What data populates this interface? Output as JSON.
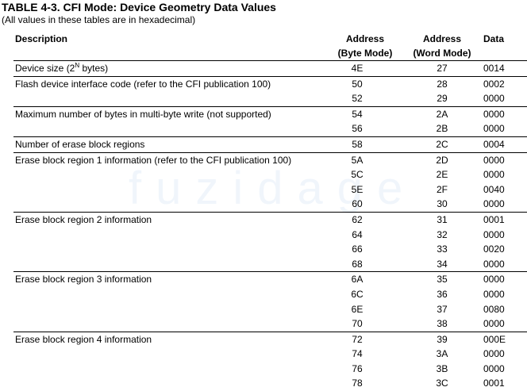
{
  "title": "TABLE 4-3. CFI Mode: Device Geometry Data Values",
  "subtitle": "(All values in these tables are in hexadecimal)",
  "watermark": "fuzidage",
  "header": {
    "description": "Description",
    "address": "Address",
    "byte_mode": "(Byte Mode)",
    "word_mode": "(Word Mode)",
    "data": "Data"
  },
  "rows": [
    {
      "desc_pre": "Device size (2",
      "desc_sup": "N",
      "desc_post": " bytes)",
      "byte": "4E",
      "word": "27",
      "data": "0014"
    },
    {
      "desc": "Flash device interface code (refer to the CFI publication 100)",
      "byte": "50",
      "word": "28",
      "data": "0002"
    },
    {
      "desc": "",
      "byte": "52",
      "word": "29",
      "data": "0000"
    },
    {
      "desc": "Maximum number of bytes in multi-byte write (not supported)",
      "byte": "54",
      "word": "2A",
      "data": "0000"
    },
    {
      "desc": "",
      "byte": "56",
      "word": "2B",
      "data": "0000"
    },
    {
      "desc": "Number of erase block regions",
      "byte": "58",
      "word": "2C",
      "data": "0004"
    },
    {
      "desc": "Erase block region 1 information (refer to the CFI publication 100)",
      "byte": "5A",
      "word": "2D",
      "data": "0000"
    },
    {
      "desc": "",
      "byte": "5C",
      "word": "2E",
      "data": "0000"
    },
    {
      "desc": "",
      "byte": "5E",
      "word": "2F",
      "data": "0040"
    },
    {
      "desc": "",
      "byte": "60",
      "word": "30",
      "data": "0000"
    },
    {
      "desc": "Erase block region 2 information",
      "byte": "62",
      "word": "31",
      "data": "0001"
    },
    {
      "desc": "",
      "byte": "64",
      "word": "32",
      "data": "0000"
    },
    {
      "desc": "",
      "byte": "66",
      "word": "33",
      "data": "0020"
    },
    {
      "desc": "",
      "byte": "68",
      "word": "34",
      "data": "0000"
    },
    {
      "desc": "Erase block region 3 information",
      "byte": "6A",
      "word": "35",
      "data": "0000"
    },
    {
      "desc": "",
      "byte": "6C",
      "word": "36",
      "data": "0000"
    },
    {
      "desc": "",
      "byte": "6E",
      "word": "37",
      "data": "0080"
    },
    {
      "desc": "",
      "byte": "70",
      "word": "38",
      "data": "0000"
    },
    {
      "desc": "Erase block region 4 information",
      "byte": "72",
      "word": "39",
      "data": "000E"
    },
    {
      "desc": "",
      "byte": "74",
      "word": "3A",
      "data": "0000"
    },
    {
      "desc": "",
      "byte": "76",
      "word": "3B",
      "data": "0000"
    },
    {
      "desc": "",
      "byte": "78",
      "word": "3C",
      "data": "0001"
    }
  ]
}
